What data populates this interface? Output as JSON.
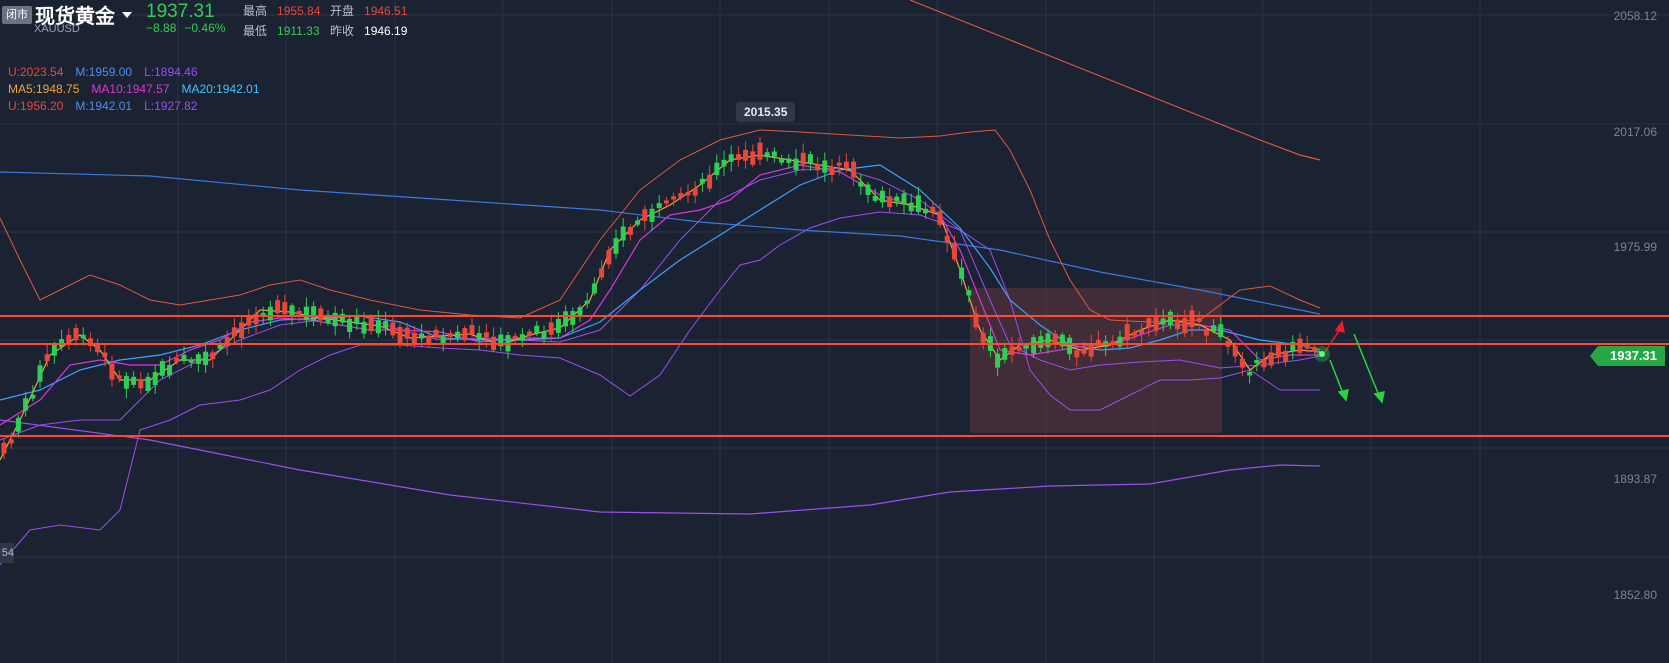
{
  "header": {
    "status_badge": "闭市",
    "title": "现货黄金",
    "symbol": "XAUUSD",
    "price": "1937.31",
    "change": "−8.88",
    "change_pct": "−0.46%",
    "high_label": "最高",
    "high_value": "1955.84",
    "open_label": "开盘",
    "open_value": "1946.51",
    "low_label": "最低",
    "low_value": "1911.33",
    "prev_close_label": "昨收",
    "prev_close_value": "1946.19"
  },
  "indicators": {
    "row1": {
      "u": "U:2023.54",
      "m": "M:1959.00",
      "l": "L:1894.46"
    },
    "row2": {
      "ma5": "MA5:1948.75",
      "ma10": "MA10:1947.57",
      "ma20": "MA20:1942.01"
    },
    "row3": {
      "u": "U:1956.20",
      "m": "M:1942.01",
      "l": "L:1927.82"
    }
  },
  "peak_label": "2015.35",
  "last_price_tag": "1937.31",
  "left_stub": "54",
  "y_axis": [
    "2058.12",
    "2017.06",
    "1975.99",
    "1893.87",
    "1852.80"
  ],
  "colors": {
    "background": "#1b2232",
    "up": "#e8473b",
    "down": "#2fcf55",
    "ma5": "#f2a33a",
    "ma10": "#d936d9",
    "ma20": "#3aa0ff",
    "bb_upper": "#e0583a",
    "bb_lower": "#9a4ff0",
    "support_line": "#ff4a2a"
  }
}
